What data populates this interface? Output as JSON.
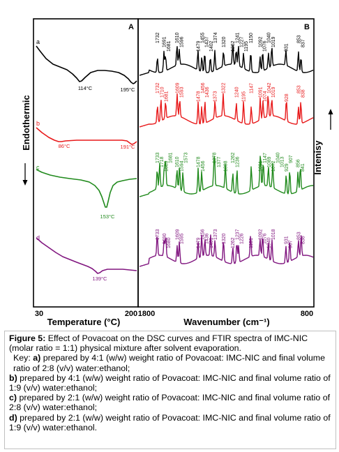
{
  "panel_a": {
    "letter": "A",
    "xlabel": "Temperature (°C)",
    "x_ticks": [
      "30",
      "200"
    ],
    "ylabel": "Endothermic",
    "chart_data": {
      "type": "line",
      "xlim": [
        30,
        200
      ],
      "series": [
        {
          "name": "a",
          "color": "#000000",
          "peak_labels": [
            "114°C",
            "195°C"
          ]
        },
        {
          "name": "b",
          "color": "#e8191a",
          "peak_labels": [
            "86°C",
            "191°C"
          ]
        },
        {
          "name": "c",
          "color": "#208a1c",
          "peak_labels": [
            "153°C"
          ]
        },
        {
          "name": "d",
          "color": "#80157f",
          "peak_labels": [
            "139°C"
          ]
        }
      ]
    }
  },
  "panel_b": {
    "letter": "B",
    "xlabel": "Wavenumber (cm⁻¹)",
    "x_ticks": [
      "1800",
      "800"
    ],
    "ylabel": "Intenisy",
    "chart_data": {
      "type": "line",
      "xlim": [
        1800,
        800
      ],
      "series": [
        {
          "color": "#000000",
          "peak_labels": [
            "1732",
            "1691",
            "1681",
            "1610",
            "1596",
            "1479",
            "1455",
            "1437",
            "1402",
            "1374",
            "1320",
            "1262",
            "1241",
            "1227",
            "1195",
            "1150",
            "1092",
            "1076",
            "1040",
            "1019",
            "931",
            "853",
            "837"
          ]
        },
        {
          "color": "#e8191a",
          "peak_labels": [
            "1732",
            "1710",
            "1681",
            "1609",
            "1593",
            "1478",
            "1456",
            "1436",
            "1373",
            "1322",
            "1240",
            "1195",
            "1147",
            "1091",
            "1074",
            "1042",
            "1019",
            "928",
            "853",
            "838"
          ]
        },
        {
          "color": "#208a1c",
          "peak_labels": [
            "1733",
            "1718",
            "1689",
            "1681",
            "1610",
            "1594",
            "1573",
            "1478",
            "1456",
            "1378",
            "1377",
            "1308",
            "1262",
            "1236",
            "1091",
            "1147",
            "1089",
            "1072",
            "1040",
            "1013",
            "929",
            "907",
            "856",
            "841"
          ]
        },
        {
          "color": "#80157f",
          "peak_labels": [
            "1733",
            "1690",
            "1680",
            "1609",
            "1595",
            "1479",
            "1456",
            "1436",
            "1401",
            "1373",
            "1320",
            "1262",
            "1237",
            "1226",
            "1151",
            "1092",
            "1076",
            "1040",
            "1018",
            "931",
            "907",
            "853",
            "836"
          ]
        }
      ]
    }
  },
  "caption": {
    "title": "Figure 5:",
    "text": " Effect of Povacoat on the DSC curves and FTIR spectra of IMC-NIC (molar ratio = 1:1) physical mixture after solvent evaporation.",
    "key_label": "Key: ",
    "items": [
      {
        "letter": "a)",
        "text": " prepared by 4:1 (w/w) weight ratio of Povacoat: IMC-NIC and final volume ratio of 2:8 (v/v) water:ethanol;"
      },
      {
        "letter": "b)",
        "text": " prepared by 4:1 (w/w) weight ratio of Povacoat: IMC-NIC and final volume ratio of 1:9 (v/v) water:ethanol;"
      },
      {
        "letter": "c)",
        "text": " prepared by 2:1 (w/w) weight ratio of Povacoat: IMC-NIC and final volume ratio of 2:8 (v/v) water:ethanol;"
      },
      {
        "letter": "d)",
        "text": " prepared by 2:1 (w/w) weight ratio of Povacoat: IMC-NIC and final volume ratio of 1:9 (v/v) water:ethanol."
      }
    ]
  }
}
